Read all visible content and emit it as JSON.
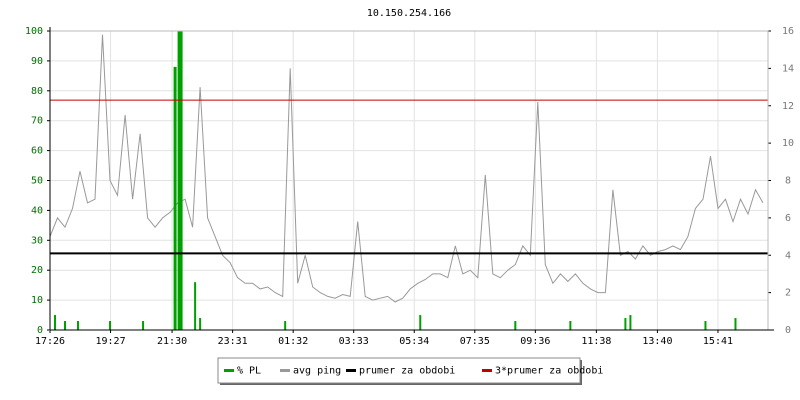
{
  "chart_data": {
    "type": "line",
    "title": "10.150.254.166",
    "xlim": [
      0,
      1435
    ],
    "xticks": [
      {
        "value": 0,
        "label": "17:26"
      },
      {
        "value": 121,
        "label": "19:27"
      },
      {
        "value": 244,
        "label": "21:30"
      },
      {
        "value": 365,
        "label": "23:31"
      },
      {
        "value": 486,
        "label": "01:32"
      },
      {
        "value": 607,
        "label": "03:33"
      },
      {
        "value": 728,
        "label": "05:34"
      },
      {
        "value": 849,
        "label": "07:35"
      },
      {
        "value": 970,
        "label": "09:36"
      },
      {
        "value": 1092,
        "label": "11:38"
      },
      {
        "value": 1214,
        "label": "13:40"
      },
      {
        "value": 1335,
        "label": "15:41"
      }
    ],
    "ylim": [
      0,
      100
    ],
    "yticks": [
      0,
      10,
      20,
      30,
      40,
      50,
      60,
      70,
      80,
      90,
      100
    ],
    "y2lim": [
      0,
      16
    ],
    "y2ticks": [
      0,
      2,
      4,
      6,
      8,
      10,
      12,
      14,
      16
    ],
    "grid": true,
    "legend": "bottom",
    "series": [
      {
        "name": "% PL",
        "color": "#00a000",
        "style": "spike",
        "axis": "y",
        "x": [
          10,
          30,
          56,
          120,
          186,
          250,
          258,
          262,
          290,
          300,
          470,
          740,
          930,
          1040,
          1150,
          1160,
          1310,
          1370
        ],
        "values": [
          5,
          3,
          3,
          3,
          3,
          88,
          100,
          100,
          16,
          4,
          3,
          5,
          3,
          3,
          4,
          5,
          3,
          4
        ]
      },
      {
        "name": "avg ping",
        "color": "#999999",
        "style": "line",
        "axis": "y2",
        "x": [
          0,
          15,
          30,
          45,
          60,
          75,
          90,
          105,
          120,
          135,
          150,
          165,
          180,
          195,
          210,
          225,
          240,
          255,
          270,
          285,
          300,
          315,
          330,
          345,
          360,
          375,
          390,
          405,
          420,
          435,
          450,
          465,
          480,
          495,
          510,
          525,
          540,
          555,
          570,
          585,
          600,
          615,
          630,
          645,
          660,
          675,
          690,
          705,
          720,
          735,
          750,
          765,
          780,
          795,
          810,
          825,
          840,
          855,
          870,
          885,
          900,
          915,
          930,
          945,
          960,
          975,
          990,
          1005,
          1020,
          1035,
          1050,
          1065,
          1080,
          1095,
          1110,
          1125,
          1140,
          1155,
          1170,
          1185,
          1200,
          1215,
          1230,
          1245,
          1260,
          1275,
          1290,
          1305,
          1320,
          1335,
          1350,
          1365,
          1380,
          1395,
          1410,
          1425
        ],
        "values": [
          5.0,
          6.0,
          5.5,
          6.5,
          8.5,
          6.8,
          7.0,
          15.8,
          8.0,
          7.2,
          11.5,
          7.0,
          10.5,
          6.0,
          5.5,
          6.0,
          6.3,
          6.8,
          7.0,
          5.5,
          13.0,
          6.0,
          5.0,
          4.0,
          3.6,
          2.8,
          2.5,
          2.5,
          2.2,
          2.3,
          2.0,
          1.8,
          14.0,
          2.5,
          4.0,
          2.3,
          2.0,
          1.8,
          1.7,
          1.9,
          1.8,
          5.8,
          1.8,
          1.6,
          1.7,
          1.8,
          1.5,
          1.7,
          2.2,
          2.5,
          2.7,
          3.0,
          3.0,
          2.8,
          4.5,
          3.0,
          3.2,
          2.8,
          8.3,
          3.0,
          2.8,
          3.2,
          3.5,
          4.5,
          4.0,
          12.2,
          3.5,
          2.5,
          3.0,
          2.6,
          3.0,
          2.5,
          2.2,
          2.0,
          2.0,
          7.5,
          4.0,
          4.2,
          3.8,
          4.5,
          4.0,
          4.2,
          4.3,
          4.5,
          4.3,
          5.0,
          6.5,
          7.0,
          9.3,
          6.5,
          7.0,
          5.8,
          7.0,
          6.2,
          7.5,
          6.8
        ]
      },
      {
        "name": "prumer za obdobi",
        "color": "#000000",
        "style": "hline",
        "axis": "y2",
        "values": [
          4.1
        ]
      },
      {
        "name": "3*prumer za obdobi",
        "color": "#c00000",
        "style": "hline",
        "axis": "y2",
        "values": [
          12.3
        ]
      }
    ]
  }
}
